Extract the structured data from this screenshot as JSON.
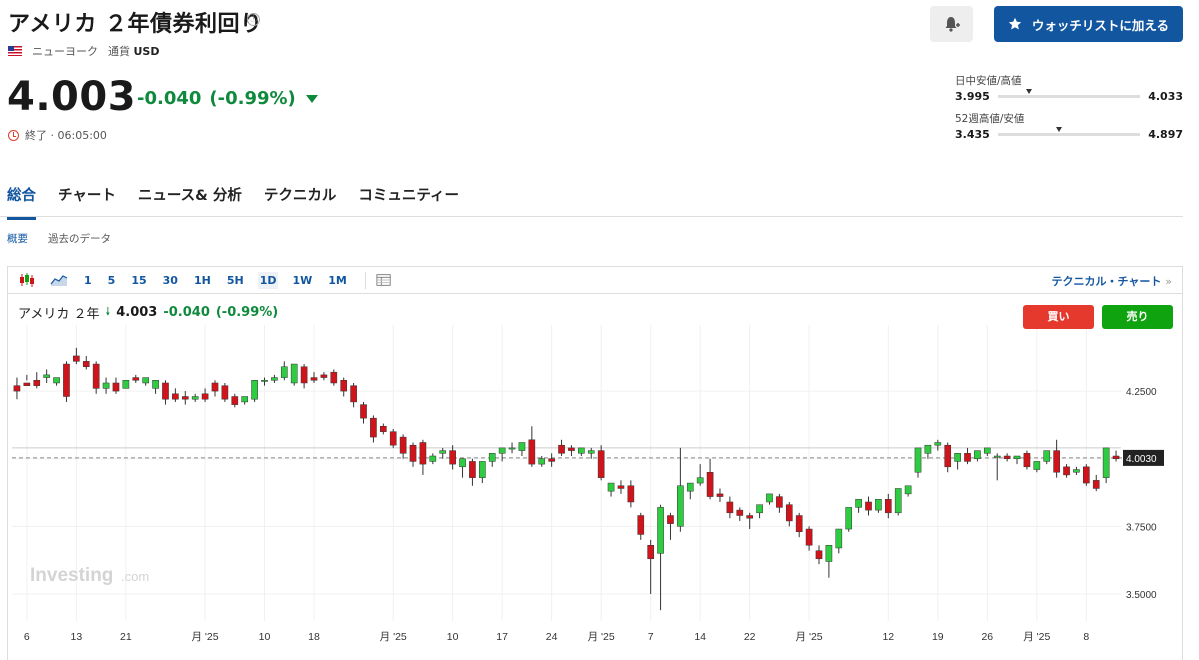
{
  "header": {
    "title": "アメリカ ２年債券利回り",
    "info_icon": "ⓘ",
    "flag_icon": "us-flag",
    "exchange": "ニューヨーク",
    "currency_label": "通貨",
    "currency": "USD",
    "watchlist_button": "ウォッチリストに加える",
    "alert_icon": "bell-plus-icon",
    "star_icon": "star-icon"
  },
  "quote": {
    "price": "4.003",
    "change": "-0.040",
    "change_pct": "(-0.99%)",
    "status": "終了 · 06:05:00",
    "change_color": "#0f8a3d"
  },
  "ranges": {
    "day": {
      "label": "日中安値/高値",
      "low": "3.995",
      "high": "4.033",
      "position": 0.2
    },
    "week52": {
      "label": "52週高値/安値",
      "low": "3.435",
      "high": "4.897",
      "position": 0.41
    }
  },
  "tabs": [
    "総合",
    "チャート",
    "ニュース& 分析",
    "テクニカル",
    "コミュニティー"
  ],
  "subtabs": [
    "概要",
    "過去のデータ"
  ],
  "toolbar": {
    "timeframes": [
      "1",
      "5",
      "15",
      "30",
      "1H",
      "5H",
      "1D",
      "1W",
      "1M"
    ],
    "active_timeframe": "1D",
    "tech_link": "テクニカル・チャート",
    "tech_arrow": "»"
  },
  "legend": {
    "symbol": "アメリカ ２年",
    "price": "4.003",
    "change": "-0.040",
    "change_pct": "(-0.99%)"
  },
  "trade": {
    "buy": "買い",
    "sell": "売り"
  },
  "colors": {
    "accent": "#1256a0",
    "up": "#2ecc40",
    "down": "#d0141b",
    "buy": "#e5392d",
    "sell": "#0fa30f"
  },
  "chart_data": {
    "type": "candlestick",
    "watermark": "Investing",
    "watermark_suffix": ".com",
    "ylim": [
      3.4,
      4.45
    ],
    "y_ticks": [
      "4.2500",
      "4.0000",
      "3.7500",
      "3.5000"
    ],
    "y_tick_values": [
      4.25,
      4.0,
      3.75,
      3.5
    ],
    "current_value": "4.0030",
    "current": 4.003,
    "reference_line": 4.04,
    "x_tick_labels": [
      "6",
      "13",
      "21",
      "月 '25",
      "10",
      "18",
      "月 '25",
      "10",
      "17",
      "24",
      "月 '25",
      "7",
      "14",
      "22",
      "月 '25",
      "12",
      "19",
      "26",
      "月 '25",
      "8"
    ],
    "x_tick_candles": [
      1,
      6,
      11,
      19,
      25,
      30,
      38,
      44,
      49,
      54,
      59,
      64,
      69,
      74,
      80,
      88,
      93,
      98,
      103,
      108
    ],
    "candles": [
      [
        4.27,
        4.3,
        4.25,
        4.22
      ],
      [
        4.28,
        4.31,
        4.27,
        4.29
      ],
      [
        4.29,
        4.32,
        4.27,
        4.26
      ],
      [
        4.3,
        4.33,
        4.31,
        4.28
      ],
      [
        4.28,
        4.29,
        4.3,
        4.27
      ],
      [
        4.35,
        4.36,
        4.23,
        4.21
      ],
      [
        4.38,
        4.41,
        4.36,
        4.35
      ],
      [
        4.36,
        4.38,
        4.34,
        4.33
      ],
      [
        4.35,
        4.36,
        4.26,
        4.24
      ],
      [
        4.26,
        4.3,
        4.28,
        4.24
      ],
      [
        4.28,
        4.3,
        4.25,
        4.24
      ],
      [
        4.26,
        4.28,
        4.29,
        4.26
      ],
      [
        4.3,
        4.31,
        4.29,
        4.28
      ],
      [
        4.28,
        4.29,
        4.3,
        4.27
      ],
      [
        4.26,
        4.27,
        4.29,
        4.24
      ],
      [
        4.28,
        4.29,
        4.22,
        4.2
      ],
      [
        4.24,
        4.26,
        4.22,
        4.21
      ],
      [
        4.23,
        4.25,
        4.22,
        4.2
      ],
      [
        4.22,
        4.24,
        4.23,
        4.21
      ],
      [
        4.24,
        4.26,
        4.22,
        4.21
      ],
      [
        4.28,
        4.29,
        4.25,
        4.23
      ],
      [
        4.27,
        4.28,
        4.22,
        4.21
      ],
      [
        4.23,
        4.24,
        4.2,
        4.19
      ],
      [
        4.21,
        4.22,
        4.23,
        4.2
      ],
      [
        4.22,
        4.23,
        4.29,
        4.21
      ],
      [
        4.29,
        4.3,
        4.29,
        4.27
      ],
      [
        4.29,
        4.31,
        4.3,
        4.28
      ],
      [
        4.3,
        4.36,
        4.34,
        4.29
      ],
      [
        4.28,
        4.35,
        4.35,
        4.27
      ],
      [
        4.34,
        4.35,
        4.28,
        4.26
      ],
      [
        4.3,
        4.32,
        4.29,
        4.28
      ],
      [
        4.31,
        4.32,
        4.3,
        4.29
      ],
      [
        4.32,
        4.33,
        4.28,
        4.27
      ],
      [
        4.29,
        4.3,
        4.25,
        4.23
      ],
      [
        4.27,
        4.28,
        4.21,
        4.19
      ],
      [
        4.2,
        4.21,
        4.15,
        4.13
      ],
      [
        4.15,
        4.16,
        4.08,
        4.06
      ],
      [
        4.12,
        4.13,
        4.1,
        4.09
      ],
      [
        4.1,
        4.11,
        4.05,
        4.04
      ],
      [
        4.08,
        4.09,
        4.02,
        4.0
      ],
      [
        4.05,
        4.06,
        3.99,
        3.97
      ],
      [
        4.06,
        4.07,
        3.98,
        3.94
      ],
      [
        3.99,
        4.02,
        4.01,
        3.98
      ],
      [
        4.02,
        4.04,
        4.03,
        4.0
      ],
      [
        4.03,
        4.05,
        3.98,
        3.96
      ],
      [
        3.97,
        4.0,
        4.0,
        3.93
      ],
      [
        3.99,
        4.0,
        3.93,
        3.9
      ],
      [
        3.93,
        3.94,
        3.99,
        3.91
      ],
      [
        3.99,
        4.01,
        4.02,
        3.97
      ],
      [
        4.02,
        4.03,
        4.04,
        3.99
      ],
      [
        4.04,
        4.06,
        4.04,
        4.02
      ],
      [
        4.03,
        4.04,
        4.06,
        4.01
      ],
      [
        4.07,
        4.12,
        3.98,
        3.97
      ],
      [
        3.98,
        4.01,
        4.0,
        3.97
      ],
      [
        4.0,
        4.02,
        3.99,
        3.97
      ],
      [
        4.05,
        4.07,
        4.02,
        4.01
      ],
      [
        4.04,
        4.05,
        4.03,
        4.01
      ],
      [
        4.02,
        4.03,
        4.04,
        4.01
      ],
      [
        4.02,
        4.04,
        4.03,
        4.0
      ],
      [
        4.03,
        4.05,
        3.93,
        3.92
      ],
      [
        3.88,
        3.89,
        3.91,
        3.86
      ],
      [
        3.9,
        3.92,
        3.89,
        3.87
      ],
      [
        3.9,
        3.92,
        3.84,
        3.82
      ],
      [
        3.79,
        3.8,
        3.72,
        3.7
      ],
      [
        3.68,
        3.7,
        3.63,
        3.5
      ],
      [
        3.65,
        3.83,
        3.82,
        3.44
      ],
      [
        3.79,
        3.8,
        3.76,
        3.7
      ],
      [
        3.75,
        4.04,
        3.9,
        3.73
      ],
      [
        3.88,
        3.91,
        3.91,
        3.85
      ],
      [
        3.91,
        3.98,
        3.93,
        3.9
      ],
      [
        3.95,
        4.0,
        3.86,
        3.85
      ],
      [
        3.87,
        3.89,
        3.86,
        3.84
      ],
      [
        3.84,
        3.86,
        3.8,
        3.78
      ],
      [
        3.81,
        3.82,
        3.79,
        3.77
      ],
      [
        3.79,
        3.8,
        3.78,
        3.74
      ],
      [
        3.8,
        3.82,
        3.83,
        3.78
      ],
      [
        3.84,
        3.86,
        3.87,
        3.83
      ],
      [
        3.86,
        3.87,
        3.82,
        3.8
      ],
      [
        3.83,
        3.84,
        3.77,
        3.75
      ],
      [
        3.79,
        3.8,
        3.73,
        3.71
      ],
      [
        3.74,
        3.75,
        3.68,
        3.66
      ],
      [
        3.66,
        3.68,
        3.63,
        3.61
      ],
      [
        3.62,
        3.64,
        3.68,
        3.56
      ],
      [
        3.67,
        3.69,
        3.74,
        3.65
      ],
      [
        3.74,
        3.78,
        3.82,
        3.73
      ],
      [
        3.82,
        3.84,
        3.85,
        3.8
      ],
      [
        3.84,
        3.86,
        3.81,
        3.79
      ],
      [
        3.81,
        3.83,
        3.85,
        3.8
      ],
      [
        3.85,
        3.87,
        3.8,
        3.78
      ],
      [
        3.8,
        3.82,
        3.89,
        3.79
      ],
      [
        3.87,
        3.89,
        3.9,
        3.86
      ],
      [
        3.95,
        3.97,
        4.04,
        3.93
      ],
      [
        4.02,
        4.03,
        4.05,
        4.0
      ],
      [
        4.05,
        4.07,
        4.06,
        4.03
      ],
      [
        4.05,
        4.06,
        3.97,
        3.95
      ],
      [
        3.99,
        4.01,
        4.02,
        3.96
      ],
      [
        4.02,
        4.04,
        3.99,
        3.98
      ],
      [
        4.0,
        4.01,
        4.03,
        3.99
      ],
      [
        4.02,
        4.03,
        4.04,
        4.01
      ],
      [
        4.01,
        4.02,
        4.01,
        3.92
      ],
      [
        4.01,
        4.02,
        4.0,
        3.99
      ],
      [
        4.0,
        4.01,
        4.01,
        3.98
      ],
      [
        4.02,
        4.03,
        3.97,
        3.96
      ],
      [
        3.96,
        3.98,
        3.99,
        3.95
      ],
      [
        3.99,
        4.0,
        4.03,
        3.98
      ],
      [
        4.03,
        4.07,
        3.95,
        3.93
      ],
      [
        3.97,
        3.98,
        3.94,
        3.93
      ],
      [
        3.95,
        3.97,
        3.96,
        3.94
      ],
      [
        3.97,
        3.98,
        3.91,
        3.9
      ],
      [
        3.92,
        3.94,
        3.89,
        3.88
      ],
      [
        3.93,
        3.95,
        4.04,
        3.91
      ],
      [
        4.01,
        4.03,
        4.0,
        3.99
      ]
    ]
  }
}
